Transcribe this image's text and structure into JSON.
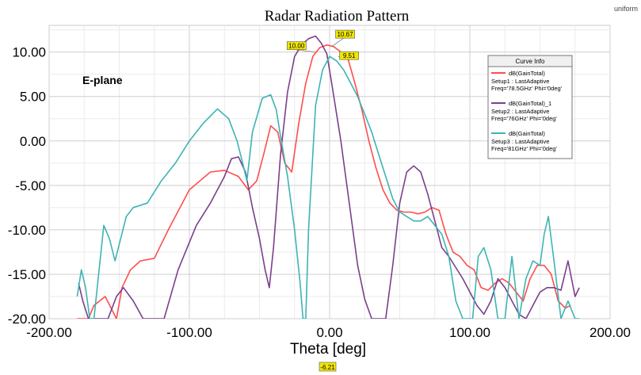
{
  "chart_data": {
    "type": "line",
    "title": "Radar Radiation Pattern",
    "corner_label": "uniform",
    "annotation": "E-plane",
    "xlabel": "Theta [deg]",
    "ylabel": "",
    "xlim": [
      -200,
      200
    ],
    "ylim": [
      -20,
      13
    ],
    "x_ticks": [
      -200,
      -100,
      0,
      100,
      200
    ],
    "x_tick_labels": [
      "-200.00",
      "-100.00",
      "0.00",
      "100.00",
      "200.00"
    ],
    "y_ticks": [
      10,
      5,
      0,
      -5,
      -10,
      -15,
      -20
    ],
    "y_tick_labels": [
      "10.00",
      "5.00",
      "0.00",
      "-5.00",
      "-10.00",
      "-15.00",
      "-20.00"
    ],
    "grid": true,
    "legend": {
      "title": "Curve Info",
      "placement": "top-right",
      "entries": [
        {
          "line1": "dB(GainTotal)",
          "line2": "Setup1 : LastAdaptive",
          "line3": "Freq='78.5GHz' Phi='0deg'",
          "color": "#ff4d4d"
        },
        {
          "line1": "dB(GainTotal)_1",
          "line2": "Setup2 : LastAdaptive",
          "line3": "Freq='76GHz' Phi='0deg'",
          "color": "#7a3f8c"
        },
        {
          "line1": "dB(GainTotal)",
          "line2": "Setup3 : LastAdaptive",
          "line3": "Freq='81GHz' Phi='0deg'",
          "color": "#3fb3b3"
        }
      ]
    },
    "markers": [
      {
        "label": "10.67",
        "x": 2,
        "y": 10.67
      },
      {
        "label": "10.00",
        "x": -10,
        "y": 10.0
      },
      {
        "label": "9.51",
        "x": 6,
        "y": 9.51
      }
    ],
    "x_marker_label": "-6.21",
    "series": [
      {
        "color": "#ff4d4d",
        "x": [
          -180,
          -172,
          -168,
          -160,
          -152,
          -148,
          -142,
          -135,
          -125,
          -115,
          -100,
          -85,
          -75,
          -65,
          -58,
          -52,
          -47,
          -42,
          -37,
          -32,
          -27,
          -22,
          -17,
          -12,
          -7,
          -2,
          3,
          8,
          13,
          18,
          23,
          28,
          33,
          38,
          43,
          48,
          53,
          58,
          63,
          68,
          73,
          78,
          83,
          88,
          93,
          98,
          103,
          108,
          113,
          118,
          123,
          128,
          133,
          138,
          143,
          148,
          153,
          158,
          163,
          168,
          172
        ],
        "y": [
          -20,
          -20,
          -18.5,
          -17.5,
          -20,
          -16.5,
          -14.5,
          -13.5,
          -13.2,
          -10,
          -5.5,
          -3.5,
          -3.3,
          -4,
          -5.5,
          -4.5,
          -1.5,
          1.7,
          1,
          -2.5,
          -3.5,
          2,
          6.5,
          9.5,
          10.5,
          10.8,
          10.6,
          10,
          9.3,
          6.5,
          3.5,
          0,
          -3,
          -5.5,
          -7,
          -7.8,
          -8,
          -8,
          -8.2,
          -8,
          -7.5,
          -7.8,
          -10.5,
          -12.5,
          -13,
          -14,
          -14.5,
          -16.5,
          -16.8,
          -16,
          -15.5,
          -16,
          -17,
          -18,
          -15.5,
          -14,
          -14,
          -15,
          -18,
          -18.8,
          -18.5
        ]
      },
      {
        "color": "#7a3f8c",
        "x": [
          -179,
          -176,
          -172,
          -165,
          -158,
          -152,
          -147,
          -140,
          -133,
          -125,
          -118,
          -108,
          -95,
          -85,
          -75,
          -70,
          -65,
          -60,
          -55,
          -50,
          -46,
          -43,
          -40,
          -35,
          -30,
          -25,
          -20,
          -15,
          -10,
          -6,
          -2,
          2,
          8,
          14,
          20,
          25,
          30,
          35,
          40,
          45,
          50,
          55,
          60,
          65,
          70,
          75,
          80,
          85,
          95,
          105,
          110,
          115,
          120,
          125,
          130,
          135,
          140,
          145,
          150,
          155,
          160,
          165,
          170,
          175,
          178
        ],
        "y": [
          -16,
          -18,
          -20,
          -20,
          -20,
          -17.5,
          -16.5,
          -18,
          -20,
          -20,
          -20,
          -14.5,
          -9.5,
          -7,
          -4,
          -2,
          -1.8,
          -3.5,
          -7.5,
          -11,
          -14.5,
          -16.5,
          -12,
          -1.5,
          5.5,
          9.5,
          10.8,
          11.5,
          11.8,
          11,
          9.8,
          6,
          0,
          -7,
          -14,
          -17.8,
          -20,
          -20,
          -20,
          -14,
          -7,
          -3.5,
          -2.8,
          -3.5,
          -6,
          -9,
          -12,
          -13,
          -15.5,
          -18.5,
          -19.5,
          -18,
          -15.5,
          -16.5,
          -18,
          -19.5,
          -20,
          -18.5,
          -17,
          -16.5,
          -16.5,
          -16.8,
          -13.5,
          -17.5,
          -16.5
        ]
      },
      {
        "color": "#3fb3b3",
        "x": [
          -180,
          -177,
          -174,
          -171,
          -168,
          -165,
          -161,
          -157,
          -153,
          -149,
          -145,
          -140,
          -130,
          -120,
          -110,
          -100,
          -90,
          -80,
          -72,
          -66,
          -62,
          -59,
          -55,
          -48,
          -42,
          -38,
          -35,
          -30,
          -25,
          -21,
          -19,
          -17,
          -15,
          -10,
          -5,
          0,
          5,
          10,
          15,
          20,
          25,
          30,
          35,
          40,
          45,
          50,
          55,
          60,
          65,
          70,
          75,
          80,
          85,
          90,
          95,
          98,
          102,
          106,
          110,
          115,
          120,
          125,
          130,
          135,
          140,
          145,
          150,
          153,
          156,
          160,
          165,
          170,
          175,
          178
        ],
        "y": [
          -17.5,
          -14.5,
          -16.5,
          -20,
          -20,
          -15.5,
          -9.5,
          -11,
          -13.5,
          -11,
          -8.5,
          -7.5,
          -7,
          -4.5,
          -2.5,
          0,
          2,
          3.6,
          2.5,
          0,
          -2.5,
          -4.5,
          1,
          4.8,
          5.2,
          3.5,
          0.5,
          -4,
          -10,
          -16,
          -20,
          -20,
          -10,
          4,
          8,
          9.5,
          9,
          8,
          6.5,
          5,
          3,
          1,
          -1.5,
          -4,
          -6.5,
          -8,
          -8.5,
          -9,
          -9,
          -8.5,
          -9.5,
          -10.5,
          -13,
          -18,
          -20,
          -20,
          -20,
          -13,
          -12,
          -14.5,
          -20,
          -20,
          -13,
          -20,
          -15.5,
          -13.5,
          -14,
          -10.5,
          -8.5,
          -13.5,
          -20,
          -18,
          -20,
          -20
        ]
      }
    ]
  }
}
